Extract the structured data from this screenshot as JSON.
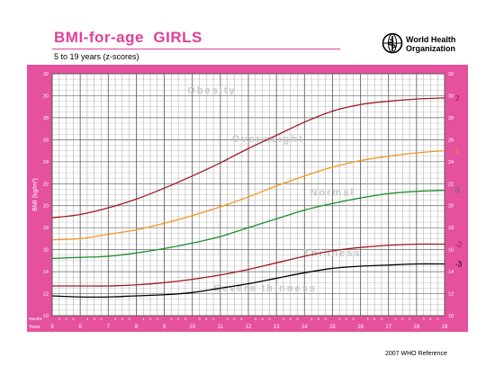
{
  "header": {
    "title": "BMI-for-age  GIRLS",
    "subtitle": "5 to 19 years (z-scores)",
    "org_line1": "World Health",
    "org_line2": "Organization"
  },
  "footer": {
    "reference": "2007 WHO Reference"
  },
  "colors": {
    "panel": "#e6519e",
    "brand": "#e0409a"
  },
  "chart_data": {
    "type": "line",
    "ylabel": "BMI (kg/m²)",
    "xlabel": "Age (completed months and years)",
    "xlim": [
      5,
      19
    ],
    "ylim": [
      10,
      32
    ],
    "yticks": [
      10,
      12,
      14,
      16,
      18,
      20,
      22,
      24,
      26,
      28,
      30,
      32
    ],
    "xticks": [
      5,
      6,
      7,
      8,
      9,
      10,
      11,
      12,
      13,
      14,
      15,
      16,
      17,
      18,
      19
    ],
    "month_ticks": [
      "3",
      "6",
      "9"
    ],
    "axis_row_labels": {
      "months": "Months",
      "years": "Years"
    },
    "grid": true,
    "zones": [
      {
        "label": "Obesity",
        "age": 10.7,
        "bmi": 30.2
      },
      {
        "label": "Overweight",
        "age": 12.7,
        "bmi": 25.8
      },
      {
        "label": "Normal",
        "age": 15,
        "bmi": 20.9
      },
      {
        "label": "Thinness",
        "age": 15,
        "bmi": 15.4
      },
      {
        "label": "Severe thinness",
        "age": 12.6,
        "bmi": 12.2
      }
    ],
    "series": [
      {
        "name": "2",
        "color": "#a01a22",
        "x": [
          5,
          6,
          7,
          8,
          9,
          10,
          11,
          12,
          13,
          14,
          15,
          16,
          17,
          18,
          19
        ],
        "y": [
          18.9,
          19.2,
          19.8,
          20.6,
          21.6,
          22.7,
          23.9,
          25.2,
          26.4,
          27.6,
          28.6,
          29.2,
          29.5,
          29.7,
          29.8
        ]
      },
      {
        "name": "1",
        "color": "#f5961e",
        "x": [
          5,
          6,
          7,
          8,
          9,
          10,
          11,
          12,
          13,
          14,
          15,
          16,
          17,
          18,
          19
        ],
        "y": [
          16.9,
          17.0,
          17.4,
          17.8,
          18.4,
          19.1,
          19.9,
          20.8,
          21.8,
          22.7,
          23.5,
          24.1,
          24.5,
          24.8,
          25.0
        ]
      },
      {
        "name": "0",
        "color": "#1e8c2d",
        "x": [
          5,
          6,
          7,
          8,
          9,
          10,
          11,
          12,
          13,
          14,
          15,
          16,
          17,
          18,
          19
        ],
        "y": [
          15.2,
          15.3,
          15.4,
          15.7,
          16.1,
          16.6,
          17.2,
          18.0,
          18.8,
          19.6,
          20.2,
          20.7,
          21.1,
          21.3,
          21.4
        ]
      },
      {
        "name": "-2",
        "color": "#a01a22",
        "x": [
          5,
          6,
          7,
          8,
          9,
          10,
          11,
          12,
          13,
          14,
          15,
          16,
          17,
          18,
          19
        ],
        "y": [
          12.7,
          12.7,
          12.7,
          12.8,
          13.0,
          13.3,
          13.7,
          14.2,
          14.8,
          15.4,
          15.9,
          16.2,
          16.4,
          16.5,
          16.5
        ]
      },
      {
        "name": "-3",
        "color": "#000000",
        "x": [
          5,
          6,
          7,
          8,
          9,
          10,
          11,
          12,
          13,
          14,
          15,
          16,
          17,
          18,
          19
        ],
        "y": [
          11.8,
          11.7,
          11.7,
          11.8,
          11.9,
          12.1,
          12.5,
          12.9,
          13.4,
          13.9,
          14.3,
          14.5,
          14.6,
          14.7,
          14.7
        ]
      }
    ]
  }
}
